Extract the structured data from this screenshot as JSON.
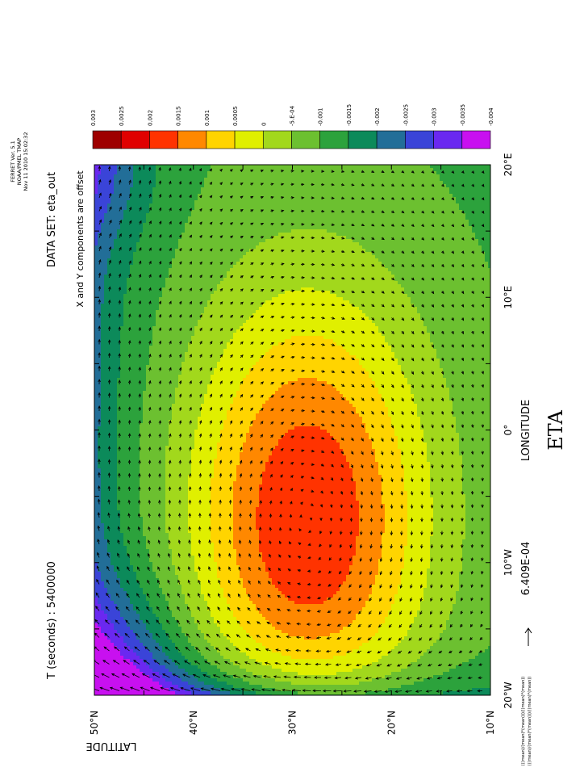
{
  "chart_data": {
    "type": "heatmap",
    "title": "ETA",
    "dataset_label": "DATA SET: eta_out",
    "time_label": "T (seconds) : 5400000",
    "offset_note": "X and Y components are offset",
    "xlabel": "LONGITUDE",
    "ylabel": "LATITUDE",
    "x_ticks": [
      "20°W",
      "10°W",
      "0°",
      "10°E",
      "20°E"
    ],
    "y_ticks": [
      "10°N",
      "20°N",
      "30°N",
      "40°N",
      "50°N"
    ],
    "xlim": [
      -20,
      20
    ],
    "ylim": [
      10,
      50
    ],
    "reference_vector": "6.409E-04",
    "header_lines": [
      "FERRET Ver. 5.1",
      "NOAA/PMEL TMAP",
      "Nov 11 2010 15:02:32"
    ],
    "footer_lines": [
      "(((mean)/(mean)*(mean)))/((mean)*(mean))",
      "(((mean)/(mean)*(mean)))/((mean)*(mean))"
    ],
    "colorbar": {
      "labels": [
        "0.003",
        "0.0025",
        "0.002",
        "0.0015",
        "0.001",
        "0.0005",
        "0",
        "-5.E-04",
        "-0.001",
        "-0.0015",
        "-0.002",
        "-0.0025",
        "-0.003",
        "-0.0035",
        "-0.004"
      ],
      "colors": [
        "#9e0000",
        "#e00000",
        "#ff3300",
        "#ff8800",
        "#ffd400",
        "#e0ef00",
        "#a2d81c",
        "#6cc030",
        "#2ca23c",
        "#0c8a5a",
        "#226e98",
        "#3a44d8",
        "#6a28f0",
        "#c810f0"
      ]
    },
    "field": {
      "center_lon": -6.8,
      "center_lat": 28.5,
      "peak_value": 0.0031,
      "min_value": -0.0038
    }
  }
}
